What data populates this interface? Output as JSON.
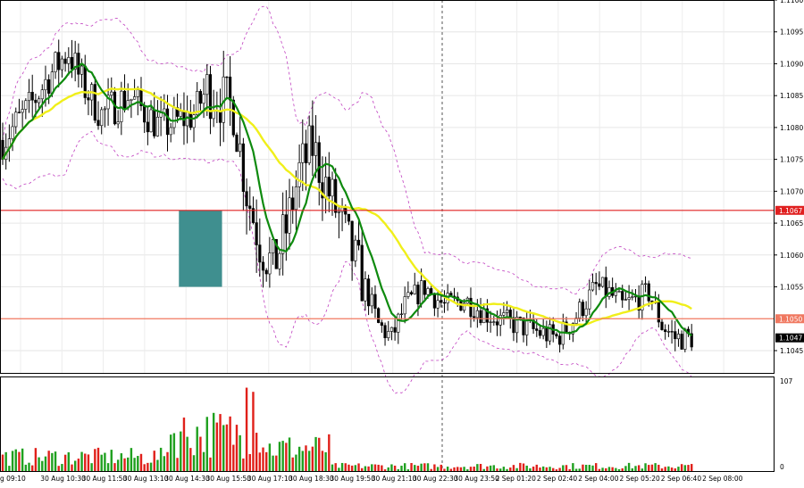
{
  "chart_data": [
    {
      "type": "candlestick",
      "title": "",
      "price_axis": {
        "ylim": [
          1.10415,
          1.11
        ],
        "ticks": [
          "1.1100",
          "1.1095",
          "1.1090",
          "1.1085",
          "1.1080",
          "1.1075",
          "1.1070",
          "1.1065",
          "1.1060",
          "1.1055",
          "1.1045"
        ]
      },
      "time_axis": {
        "labels": [
          "g 09:10",
          "30 Aug 10:30",
          "30 Aug 11:50",
          "30 Aug 13:10",
          "30 Aug 14:30",
          "30 Aug 15:50",
          "30 Aug 17:10",
          "30 Aug 18:30",
          "30 Aug 19:50",
          "30 Aug 21:10",
          "30 Aug 22:30",
          "30 Aug 23:50",
          "2 Sep 01:20",
          "2 Sep 02:40",
          "2 Sep 04:00",
          "2 Sep 05:20",
          "2 Sep 06:40",
          "2 Sep 08:00"
        ]
      },
      "horizontal_levels": [
        {
          "label": "1.1067",
          "value": 1.1067,
          "color": "#e02020"
        },
        {
          "label": "1.1050",
          "value": 1.105,
          "color": "#f07860"
        }
      ],
      "current_price": {
        "label": "1.1047",
        "value": 1.1047
      },
      "highlight_zone": {
        "price_from": 1.1055,
        "price_to": 1.1067,
        "color": "#3f8f8f"
      },
      "candle_count": 210,
      "close_path": [
        [
          0,
          1.1078
        ],
        [
          8,
          1.1083
        ],
        [
          14,
          1.1088
        ],
        [
          20,
          1.1092
        ],
        [
          24,
          1.1087
        ],
        [
          30,
          1.1082
        ],
        [
          38,
          1.1085
        ],
        [
          48,
          1.108
        ],
        [
          58,
          1.1082
        ],
        [
          62,
          1.1086
        ],
        [
          65,
          1.1085
        ],
        [
          70,
          1.1083
        ],
        [
          74,
          1.107
        ],
        [
          78,
          1.1062
        ],
        [
          82,
          1.1058
        ],
        [
          86,
          1.1064
        ],
        [
          90,
          1.1073
        ],
        [
          94,
          1.1077
        ],
        [
          98,
          1.1071
        ],
        [
          102,
          1.1066
        ],
        [
          106,
          1.106
        ],
        [
          110,
          1.1055
        ],
        [
          114,
          1.1049
        ],
        [
          118,
          1.1047
        ],
        [
          122,
          1.1052
        ],
        [
          128,
          1.1055
        ],
        [
          134,
          1.1052
        ],
        [
          140,
          1.1053
        ],
        [
          146,
          1.1051
        ],
        [
          150,
          1.105
        ],
        [
          156,
          1.1049
        ],
        [
          162,
          1.1048
        ],
        [
          168,
          1.1047
        ],
        [
          172,
          1.1049
        ],
        [
          176,
          1.1052
        ],
        [
          180,
          1.1055
        ],
        [
          184,
          1.1054
        ],
        [
          188,
          1.1052
        ],
        [
          192,
          1.1053
        ],
        [
          196,
          1.1054
        ],
        [
          200,
          1.1049
        ],
        [
          204,
          1.1047
        ],
        [
          209,
          1.1047
        ]
      ],
      "indicators": [
        {
          "kind": "moving_average",
          "color": "#0e8a0e",
          "period": 10
        },
        {
          "kind": "moving_average",
          "color": "#f0ef1a",
          "period": 30
        },
        {
          "kind": "envelope_bands",
          "color": "#c040c0",
          "period": 20
        }
      ],
      "volume_axis": {
        "ticks": [
          "107",
          "0"
        ],
        "max": 107
      }
    }
  ]
}
